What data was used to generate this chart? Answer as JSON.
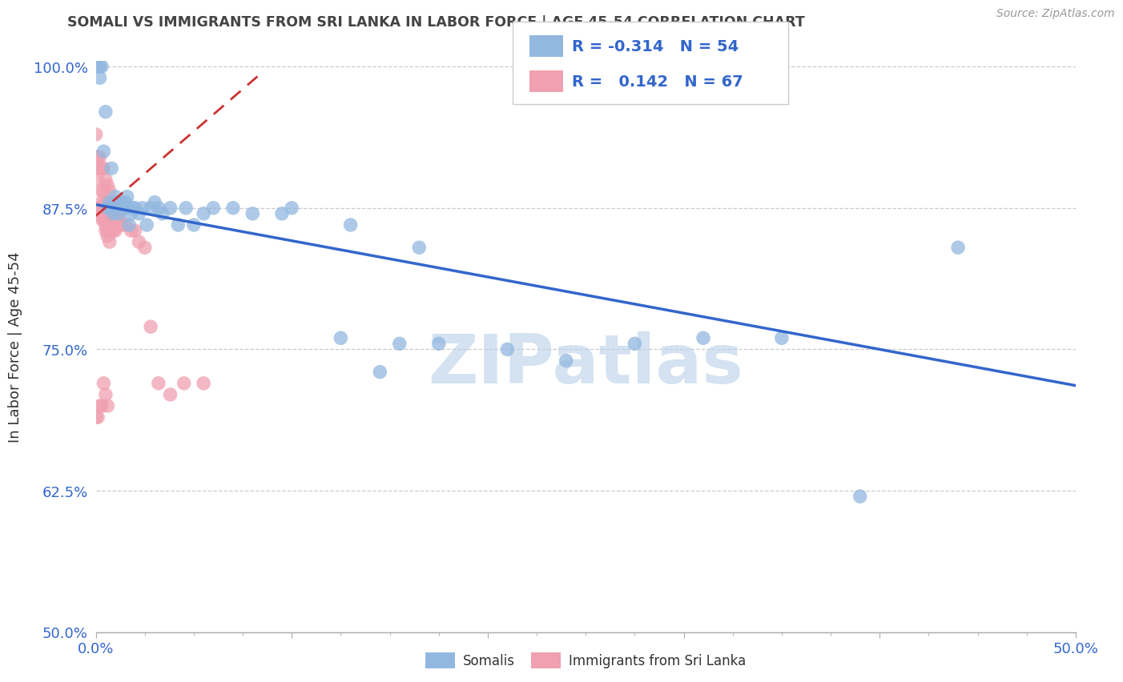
{
  "title": "SOMALI VS IMMIGRANTS FROM SRI LANKA IN LABOR FORCE | AGE 45-54 CORRELATION CHART",
  "source": "Source: ZipAtlas.com",
  "ylabel": "In Labor Force | Age 45-54",
  "xlim": [
    0.0,
    0.5
  ],
  "ylim": [
    0.5,
    1.005
  ],
  "xtick_positions": [
    0.0,
    0.1,
    0.2,
    0.3,
    0.4,
    0.5
  ],
  "xtick_labels_edge": {
    "0.0": "0.0%",
    "0.5": "50.0%"
  },
  "ytick_positions": [
    0.5,
    0.625,
    0.75,
    0.875,
    1.0
  ],
  "ytick_labels": [
    "50.0%",
    "62.5%",
    "75.0%",
    "87.5%",
    "100.0%"
  ],
  "legend_R": [
    "-0.314",
    "0.142"
  ],
  "legend_N": [
    "54",
    "67"
  ],
  "blue_color": "#92b8e0",
  "pink_color": "#f0a0b0",
  "blue_line_color": "#3366cc",
  "pink_line_color": "#cc3333",
  "grid_color": "#cccccc",
  "watermark": "ZIPatlas",
  "watermark_color": "#b8cfe8",
  "axis_color": "#3366cc",
  "title_color": "#444444",
  "blue_trend_x": [
    0.0,
    0.5
  ],
  "blue_trend_y": [
    0.878,
    0.718
  ],
  "pink_trend_x": [
    0.0,
    0.085
  ],
  "pink_trend_y": [
    0.868,
    0.995
  ],
  "somali_x": [
    0.001,
    0.002,
    0.002,
    0.003,
    0.004,
    0.005,
    0.006,
    0.007,
    0.008,
    0.008,
    0.009,
    0.01,
    0.011,
    0.012,
    0.012,
    0.013,
    0.014,
    0.015,
    0.016,
    0.016,
    0.017,
    0.018,
    0.019,
    0.02,
    0.022,
    0.024,
    0.026,
    0.028,
    0.03,
    0.032,
    0.034,
    0.038,
    0.042,
    0.046,
    0.05,
    0.055,
    0.06,
    0.07,
    0.08,
    0.1,
    0.13,
    0.155,
    0.175,
    0.21,
    0.24,
    0.275,
    0.31,
    0.35,
    0.39,
    0.44,
    0.095,
    0.125,
    0.145,
    0.165
  ],
  "somali_y": [
    1.0,
    1.0,
    0.99,
    1.0,
    0.925,
    0.96,
    0.875,
    0.88,
    0.91,
    0.875,
    0.87,
    0.885,
    0.88,
    0.88,
    0.87,
    0.88,
    0.875,
    0.88,
    0.875,
    0.885,
    0.86,
    0.87,
    0.875,
    0.875,
    0.87,
    0.875,
    0.86,
    0.875,
    0.88,
    0.875,
    0.87,
    0.875,
    0.86,
    0.875,
    0.86,
    0.87,
    0.875,
    0.875,
    0.87,
    0.875,
    0.86,
    0.755,
    0.755,
    0.75,
    0.74,
    0.755,
    0.76,
    0.76,
    0.62,
    0.84,
    0.87,
    0.76,
    0.73,
    0.84
  ],
  "srilanka_x": [
    0.0,
    0.0,
    0.0,
    0.001,
    0.001,
    0.001,
    0.001,
    0.001,
    0.002,
    0.002,
    0.002,
    0.002,
    0.003,
    0.003,
    0.003,
    0.003,
    0.003,
    0.004,
    0.004,
    0.004,
    0.004,
    0.005,
    0.005,
    0.005,
    0.005,
    0.005,
    0.005,
    0.006,
    0.006,
    0.006,
    0.006,
    0.006,
    0.006,
    0.007,
    0.007,
    0.007,
    0.007,
    0.007,
    0.008,
    0.008,
    0.008,
    0.009,
    0.009,
    0.009,
    0.01,
    0.01,
    0.01,
    0.011,
    0.012,
    0.013,
    0.015,
    0.018,
    0.02,
    0.022,
    0.025,
    0.028,
    0.032,
    0.038,
    0.045,
    0.055,
    0.0,
    0.001,
    0.002,
    0.003,
    0.004,
    0.005,
    0.006
  ],
  "srilanka_y": [
    0.92,
    0.94,
    0.87,
    0.92,
    0.91,
    0.9,
    0.875,
    0.87,
    0.92,
    0.91,
    0.875,
    0.87,
    0.91,
    0.89,
    0.88,
    0.875,
    0.865,
    0.91,
    0.89,
    0.875,
    0.865,
    0.9,
    0.88,
    0.875,
    0.865,
    0.86,
    0.855,
    0.895,
    0.88,
    0.875,
    0.865,
    0.855,
    0.85,
    0.89,
    0.875,
    0.87,
    0.855,
    0.845,
    0.88,
    0.87,
    0.86,
    0.875,
    0.865,
    0.855,
    0.875,
    0.865,
    0.855,
    0.87,
    0.865,
    0.86,
    0.86,
    0.855,
    0.855,
    0.845,
    0.84,
    0.77,
    0.72,
    0.71,
    0.72,
    0.72,
    0.69,
    0.69,
    0.7,
    0.7,
    0.72,
    0.71,
    0.7
  ]
}
